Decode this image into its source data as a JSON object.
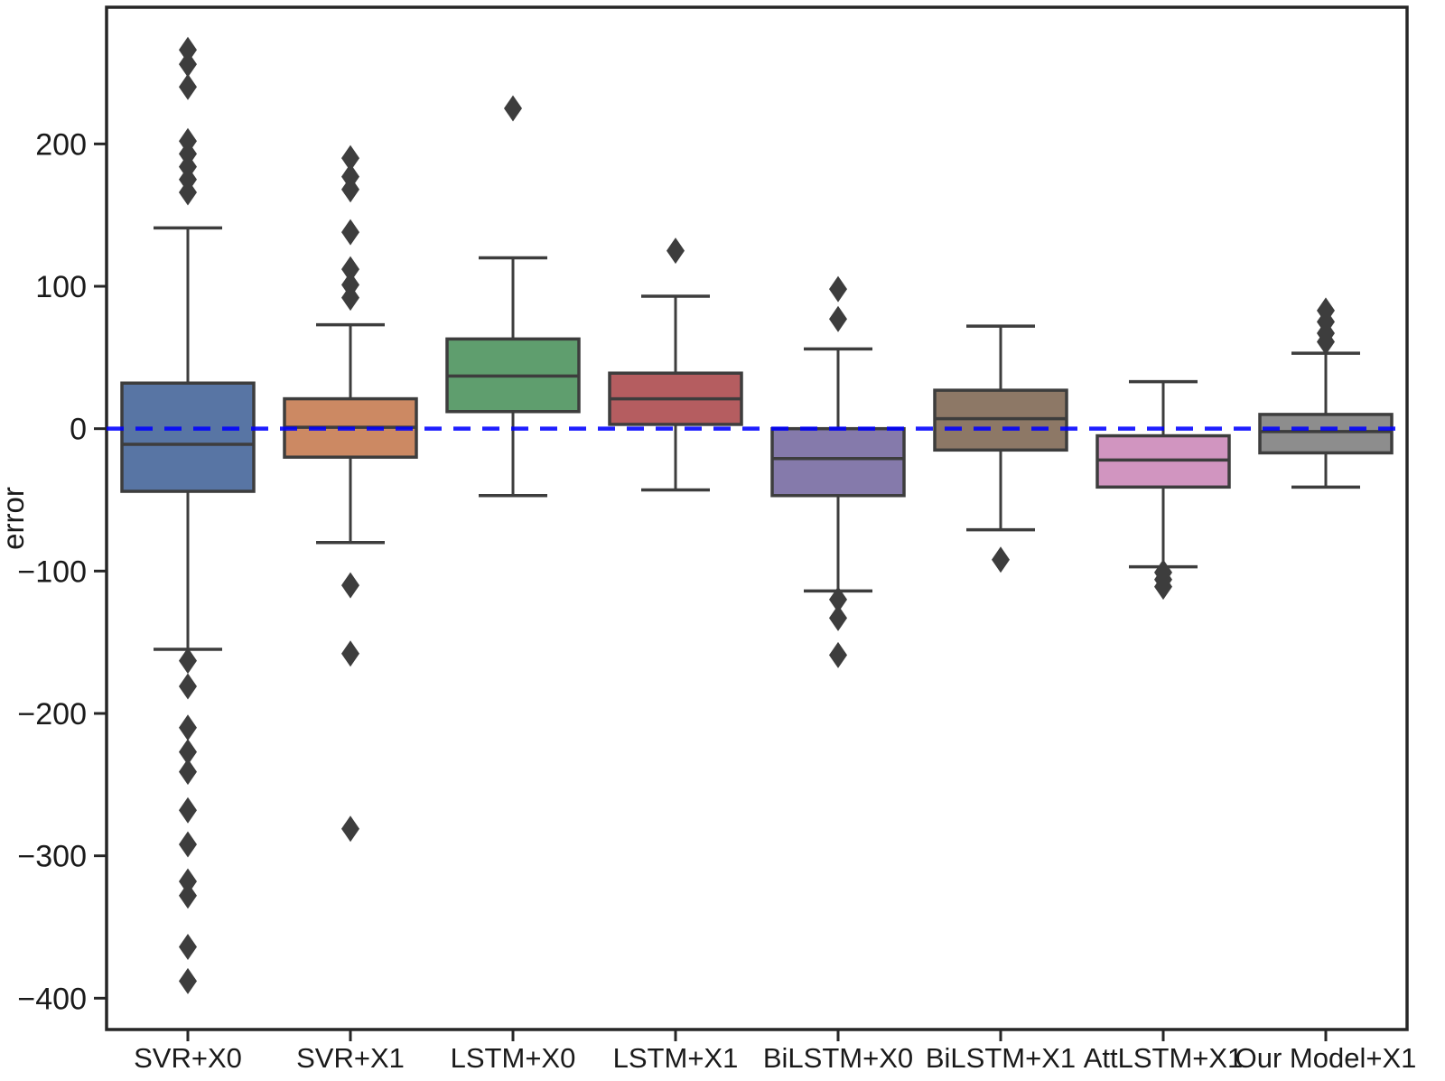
{
  "chart_data": {
    "type": "box",
    "title": "",
    "xlabel": "",
    "ylabel": "error",
    "ylim": [
      -422,
      296
    ],
    "grid": false,
    "legend": "none",
    "yticks": [
      {
        "value": 200,
        "label": "200"
      },
      {
        "value": 100,
        "label": "100"
      },
      {
        "value": 0,
        "label": "0"
      },
      {
        "value": -100,
        "label": "−100"
      },
      {
        "value": -200,
        "label": "−200"
      },
      {
        "value": -300,
        "label": "−300"
      },
      {
        "value": -400,
        "label": "−400"
      }
    ],
    "zero_line": {
      "value": 0,
      "color": "#0000FF",
      "style": "dashed"
    },
    "categories": [
      "SVR+X0",
      "SVR+X1",
      "LSTM+X0",
      "LSTM+X1",
      "BiLSTM+X0",
      "BiLSTM+X1",
      "AttLSTM+X1",
      "Our Model+X1"
    ],
    "series": [
      {
        "name": "SVR+X0",
        "color": "#5875A4",
        "whisker_low": -155,
        "q1": -44,
        "median": -11,
        "q3": 32,
        "whisker_high": 141,
        "outliers": [
          266,
          256,
          240,
          202,
          193,
          184,
          175,
          166,
          -163,
          -181,
          -210,
          -227,
          -241,
          -268,
          -292,
          -318,
          -328,
          -364,
          -388
        ]
      },
      {
        "name": "SVR+X1",
        "color": "#CC8963",
        "whisker_low": -80,
        "q1": -20,
        "median": 1,
        "q3": 21,
        "whisker_high": 73,
        "outliers": [
          190,
          177,
          168,
          138,
          112,
          101,
          92,
          -110,
          -158,
          -281
        ]
      },
      {
        "name": "LSTM+X0",
        "color": "#5F9E6E",
        "whisker_low": -47,
        "q1": 12,
        "median": 37,
        "q3": 63,
        "whisker_high": 120,
        "outliers": [
          225
        ]
      },
      {
        "name": "LSTM+X1",
        "color": "#B55D60",
        "whisker_low": -43,
        "q1": 3,
        "median": 21,
        "q3": 39,
        "whisker_high": 93,
        "outliers": [
          125
        ]
      },
      {
        "name": "BiLSTM+X0",
        "color": "#857AAB",
        "whisker_low": -114,
        "q1": -47,
        "median": -21,
        "q3": 0,
        "whisker_high": 56,
        "outliers": [
          98,
          77,
          -120,
          -133,
          -159
        ]
      },
      {
        "name": "BiLSTM+X1",
        "color": "#8D7866",
        "whisker_low": -71,
        "q1": -15,
        "median": 7,
        "q3": 27,
        "whisker_high": 72,
        "outliers": [
          -92
        ]
      },
      {
        "name": "AttLSTM+X1",
        "color": "#D195C0",
        "whisker_low": -97,
        "q1": -41,
        "median": -22,
        "q3": -5,
        "whisker_high": 33,
        "outliers": [
          -101,
          -106,
          -111
        ]
      },
      {
        "name": "Our Model+X1",
        "color": "#8D8D8D",
        "whisker_low": -41,
        "q1": -17,
        "median": -2,
        "q3": 10,
        "whisker_high": 53,
        "outliers": [
          83,
          75,
          67,
          61
        ]
      }
    ],
    "styles": {
      "box_edge_color": "#3D3D3D",
      "frame_color": "#262626",
      "outlier_marker": "diamond",
      "outlier_color": "#3D3D3D",
      "background": "#FFFFFF"
    }
  }
}
